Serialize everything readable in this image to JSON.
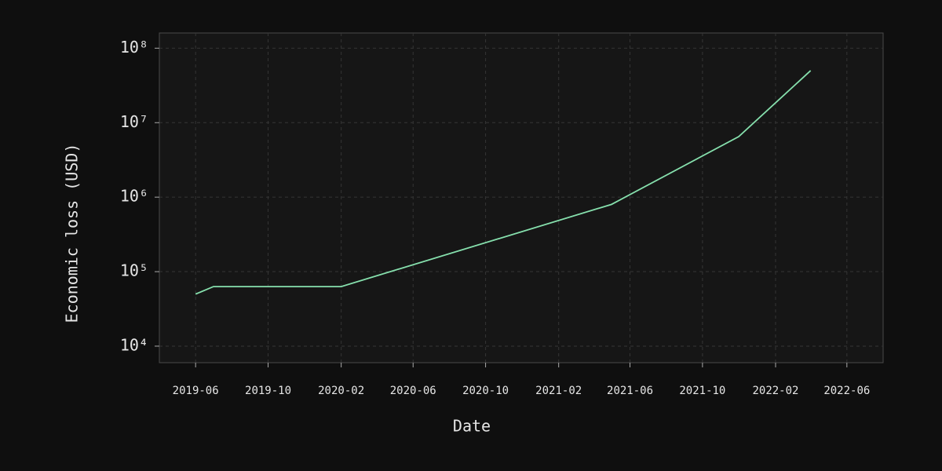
{
  "chart_data": {
    "type": "line",
    "x_label": "Date",
    "y_label": "Economic loss (USD)",
    "x": [
      "2019-06",
      "2019-07",
      "2020-02",
      "2021-05",
      "2021-12",
      "2022-04"
    ],
    "series": [
      {
        "name": "Economic loss",
        "color": "#86e0ad",
        "values": [
          50000,
          63000,
          63000,
          800000,
          6500000,
          50000000
        ]
      }
    ],
    "xlim": [
      "2019-04",
      "2022-08"
    ],
    "xticks": [
      "2019-06",
      "2019-10",
      "2020-02",
      "2020-06",
      "2020-10",
      "2021-02",
      "2021-06",
      "2021-10",
      "2022-02",
      "2022-06"
    ],
    "ylim": [
      6000,
      160000000
    ],
    "yticks": [
      {
        "value": 10000,
        "label": "10⁴"
      },
      {
        "value": 100000,
        "label": "10⁵"
      },
      {
        "value": 1000000,
        "label": "10⁶"
      },
      {
        "value": 10000000,
        "label": "10⁷"
      },
      {
        "value": 100000000,
        "label": "10⁸"
      }
    ],
    "ylog": true,
    "grid": true
  }
}
